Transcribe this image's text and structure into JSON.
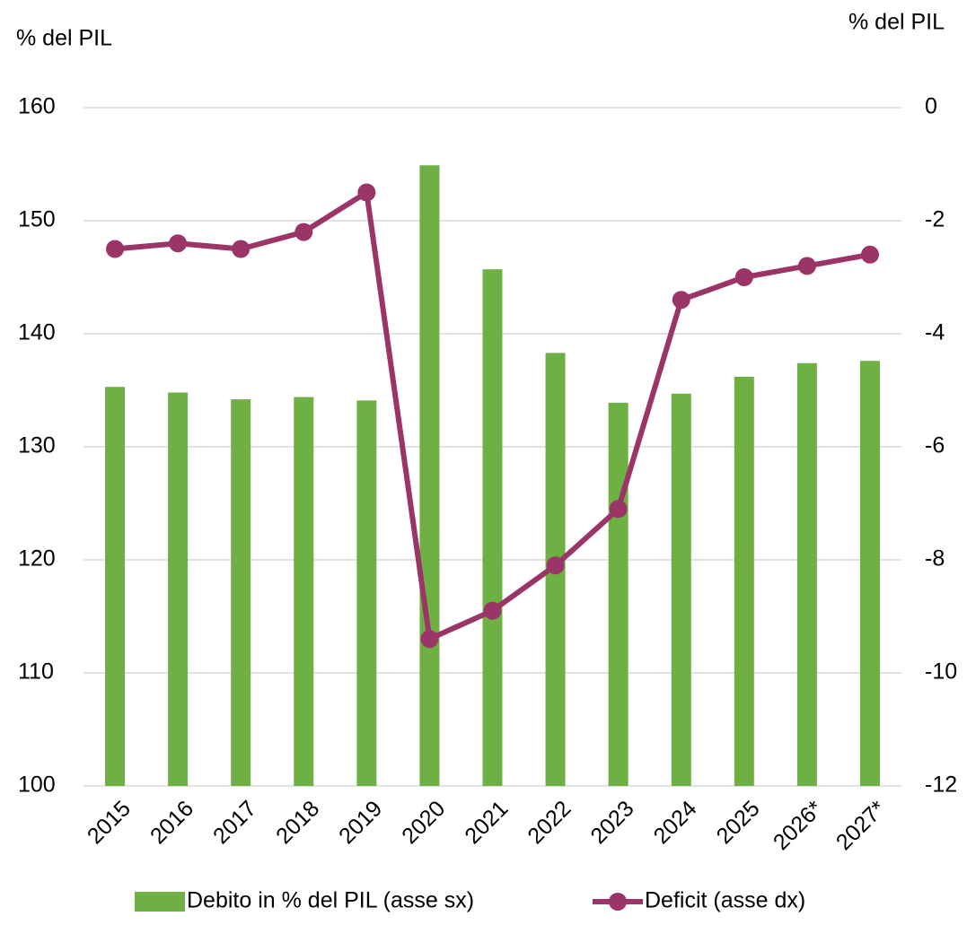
{
  "chart_data": {
    "type": "bar_line",
    "y_label": "% del PIL",
    "y2_label": "% del PIL",
    "categories": [
      "2015",
      "2016",
      "2017",
      "2018",
      "2019",
      "2020",
      "2021",
      "2022",
      "2023",
      "2024",
      "2025",
      "2026*",
      "2027*"
    ],
    "series": [
      {
        "name": "Debito in % del PIL (asse sx)",
        "color": "#6eb043",
        "type": "bar",
        "axis": "y",
        "values": [
          135.3,
          134.8,
          134.2,
          134.4,
          134.1,
          154.9,
          145.7,
          138.3,
          133.9,
          134.7,
          136.2,
          137.4,
          137.6
        ]
      },
      {
        "name": "Deficit (asse dx)",
        "color": "#9b3467",
        "type": "line",
        "axis": "y2",
        "values": [
          -2.5,
          -2.4,
          -2.5,
          -2.2,
          -1.5,
          -9.4,
          -8.9,
          -8.1,
          -7.1,
          -3.4,
          -3.0,
          -2.8,
          -2.6
        ]
      }
    ],
    "ylim": [
      100,
      160
    ],
    "yticks": [
      100,
      110,
      120,
      130,
      140,
      150,
      160
    ],
    "y2lim": [
      -12,
      0
    ],
    "y2ticks": [
      -12,
      -10,
      -8,
      -6,
      -4,
      -2,
      0
    ],
    "grid": true,
    "legend": "bottom"
  }
}
